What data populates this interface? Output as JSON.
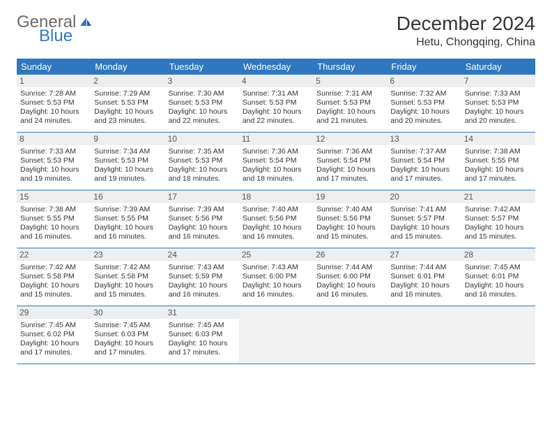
{
  "logo": {
    "part1": "General",
    "part2": "Blue"
  },
  "title": "December 2024",
  "location": "Hetu, Chongqing, China",
  "colors": {
    "header_bg": "#2f78bf",
    "header_fg": "#ffffff",
    "daynum_bg": "#eceeef",
    "border": "#2f78bf",
    "text": "#333333",
    "logo_gray": "#6b6b6b",
    "logo_blue": "#2f78bf",
    "page_bg": "#ffffff",
    "empty_bg": "#f2f2f2"
  },
  "day_names": [
    "Sunday",
    "Monday",
    "Tuesday",
    "Wednesday",
    "Thursday",
    "Friday",
    "Saturday"
  ],
  "weeks": [
    [
      {
        "n": 1,
        "sunrise": "7:28 AM",
        "sunset": "5:53 PM",
        "day_h": 10,
        "day_m": 24
      },
      {
        "n": 2,
        "sunrise": "7:29 AM",
        "sunset": "5:53 PM",
        "day_h": 10,
        "day_m": 23
      },
      {
        "n": 3,
        "sunrise": "7:30 AM",
        "sunset": "5:53 PM",
        "day_h": 10,
        "day_m": 22
      },
      {
        "n": 4,
        "sunrise": "7:31 AM",
        "sunset": "5:53 PM",
        "day_h": 10,
        "day_m": 22
      },
      {
        "n": 5,
        "sunrise": "7:31 AM",
        "sunset": "5:53 PM",
        "day_h": 10,
        "day_m": 21
      },
      {
        "n": 6,
        "sunrise": "7:32 AM",
        "sunset": "5:53 PM",
        "day_h": 10,
        "day_m": 20
      },
      {
        "n": 7,
        "sunrise": "7:33 AM",
        "sunset": "5:53 PM",
        "day_h": 10,
        "day_m": 20
      }
    ],
    [
      {
        "n": 8,
        "sunrise": "7:33 AM",
        "sunset": "5:53 PM",
        "day_h": 10,
        "day_m": 19
      },
      {
        "n": 9,
        "sunrise": "7:34 AM",
        "sunset": "5:53 PM",
        "day_h": 10,
        "day_m": 19
      },
      {
        "n": 10,
        "sunrise": "7:35 AM",
        "sunset": "5:53 PM",
        "day_h": 10,
        "day_m": 18
      },
      {
        "n": 11,
        "sunrise": "7:36 AM",
        "sunset": "5:54 PM",
        "day_h": 10,
        "day_m": 18
      },
      {
        "n": 12,
        "sunrise": "7:36 AM",
        "sunset": "5:54 PM",
        "day_h": 10,
        "day_m": 17
      },
      {
        "n": 13,
        "sunrise": "7:37 AM",
        "sunset": "5:54 PM",
        "day_h": 10,
        "day_m": 17
      },
      {
        "n": 14,
        "sunrise": "7:38 AM",
        "sunset": "5:55 PM",
        "day_h": 10,
        "day_m": 17
      }
    ],
    [
      {
        "n": 15,
        "sunrise": "7:38 AM",
        "sunset": "5:55 PM",
        "day_h": 10,
        "day_m": 16
      },
      {
        "n": 16,
        "sunrise": "7:39 AM",
        "sunset": "5:55 PM",
        "day_h": 10,
        "day_m": 16
      },
      {
        "n": 17,
        "sunrise": "7:39 AM",
        "sunset": "5:56 PM",
        "day_h": 10,
        "day_m": 16
      },
      {
        "n": 18,
        "sunrise": "7:40 AM",
        "sunset": "5:56 PM",
        "day_h": 10,
        "day_m": 16
      },
      {
        "n": 19,
        "sunrise": "7:40 AM",
        "sunset": "5:56 PM",
        "day_h": 10,
        "day_m": 15
      },
      {
        "n": 20,
        "sunrise": "7:41 AM",
        "sunset": "5:57 PM",
        "day_h": 10,
        "day_m": 15
      },
      {
        "n": 21,
        "sunrise": "7:42 AM",
        "sunset": "5:57 PM",
        "day_h": 10,
        "day_m": 15
      }
    ],
    [
      {
        "n": 22,
        "sunrise": "7:42 AM",
        "sunset": "5:58 PM",
        "day_h": 10,
        "day_m": 15
      },
      {
        "n": 23,
        "sunrise": "7:42 AM",
        "sunset": "5:58 PM",
        "day_h": 10,
        "day_m": 15
      },
      {
        "n": 24,
        "sunrise": "7:43 AM",
        "sunset": "5:59 PM",
        "day_h": 10,
        "day_m": 16
      },
      {
        "n": 25,
        "sunrise": "7:43 AM",
        "sunset": "6:00 PM",
        "day_h": 10,
        "day_m": 16
      },
      {
        "n": 26,
        "sunrise": "7:44 AM",
        "sunset": "6:00 PM",
        "day_h": 10,
        "day_m": 16
      },
      {
        "n": 27,
        "sunrise": "7:44 AM",
        "sunset": "6:01 PM",
        "day_h": 10,
        "day_m": 16
      },
      {
        "n": 28,
        "sunrise": "7:45 AM",
        "sunset": "6:01 PM",
        "day_h": 10,
        "day_m": 16
      }
    ],
    [
      {
        "n": 29,
        "sunrise": "7:45 AM",
        "sunset": "6:02 PM",
        "day_h": 10,
        "day_m": 17
      },
      {
        "n": 30,
        "sunrise": "7:45 AM",
        "sunset": "6:03 PM",
        "day_h": 10,
        "day_m": 17
      },
      {
        "n": 31,
        "sunrise": "7:45 AM",
        "sunset": "6:03 PM",
        "day_h": 10,
        "day_m": 17
      },
      null,
      null,
      null,
      null
    ]
  ]
}
